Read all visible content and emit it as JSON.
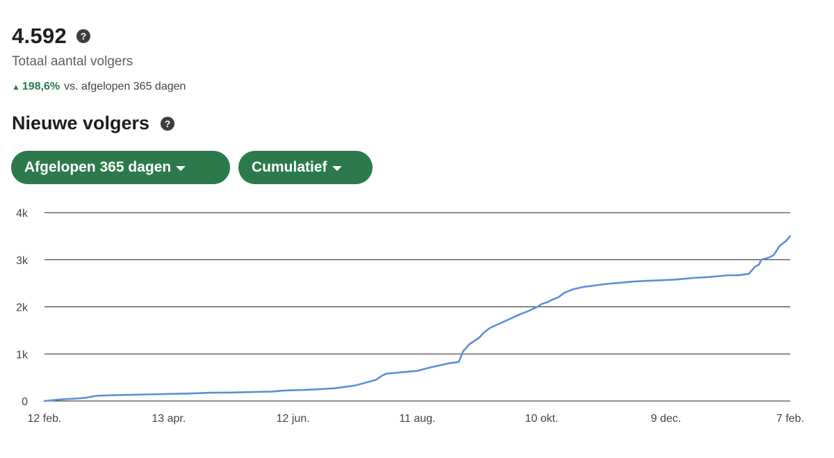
{
  "summary": {
    "total": "4.592",
    "total_label": "Totaal aantal volgers",
    "change_value": "198,6%",
    "change_suffix": "vs. afgelopen 365 dagen",
    "help_glyph": "?",
    "up_glyph": "▲"
  },
  "section": {
    "title": "Nieuwe volgers"
  },
  "filters": {
    "range_label": "Afgelopen 365 dagen",
    "mode_label": "Cumulatief"
  },
  "colors": {
    "accent": "#2c7a4c",
    "line": "#5b8fd8",
    "grid": "#1f1f1f"
  },
  "chart_data": {
    "type": "line",
    "title": "",
    "xlabel": "",
    "ylabel": "",
    "grid": true,
    "legend": "none",
    "ylim": [
      0,
      4000
    ],
    "y_ticks": [
      {
        "value": 0,
        "label": "0"
      },
      {
        "value": 1000,
        "label": "1k"
      },
      {
        "value": 2000,
        "label": "2k"
      },
      {
        "value": 3000,
        "label": "3k"
      },
      {
        "value": 4000,
        "label": "4k"
      }
    ],
    "x_ticks": [
      {
        "day": 0,
        "label": "12 feb."
      },
      {
        "day": 60,
        "label": "13 apr."
      },
      {
        "day": 120,
        "label": "12 jun."
      },
      {
        "day": 180,
        "label": "11 aug."
      },
      {
        "day": 240,
        "label": "10 okt."
      },
      {
        "day": 300,
        "label": "9 dec."
      },
      {
        "day": 360,
        "label": "7 feb."
      }
    ],
    "xlim": [
      0,
      360
    ],
    "series": [
      {
        "x": [
          0,
          5,
          10,
          15,
          20,
          25,
          30,
          35,
          40,
          50,
          60,
          70,
          80,
          90,
          100,
          110,
          115,
          120,
          125,
          130,
          140,
          145,
          150,
          155,
          160,
          163,
          165,
          170,
          180,
          185,
          190,
          195,
          200,
          202,
          205,
          210,
          212,
          215,
          220,
          225,
          230,
          233,
          236,
          238,
          240,
          243,
          245,
          248,
          251,
          255,
          260,
          265,
          270,
          275,
          280,
          285,
          290,
          295,
          300,
          305,
          310,
          315,
          320,
          325,
          330,
          335,
          340,
          342,
          343,
          345,
          346,
          350,
          352,
          355,
          358,
          360
        ],
        "y": [
          0,
          20,
          40,
          50,
          70,
          110,
          120,
          125,
          130,
          140,
          150,
          160,
          175,
          180,
          190,
          200,
          220,
          230,
          235,
          245,
          270,
          300,
          330,
          390,
          450,
          540,
          580,
          600,
          640,
          700,
          750,
          800,
          830,
          1050,
          1200,
          1350,
          1450,
          1550,
          1650,
          1750,
          1850,
          1900,
          1960,
          2000,
          2060,
          2100,
          2150,
          2200,
          2300,
          2370,
          2420,
          2450,
          2480,
          2500,
          2520,
          2540,
          2550,
          2560,
          2570,
          2580,
          2600,
          2620,
          2630,
          2650,
          2670,
          2670,
          2700,
          2800,
          2850,
          2900,
          3000,
          3050,
          3100,
          3300,
          3400,
          3500
        ]
      }
    ]
  }
}
